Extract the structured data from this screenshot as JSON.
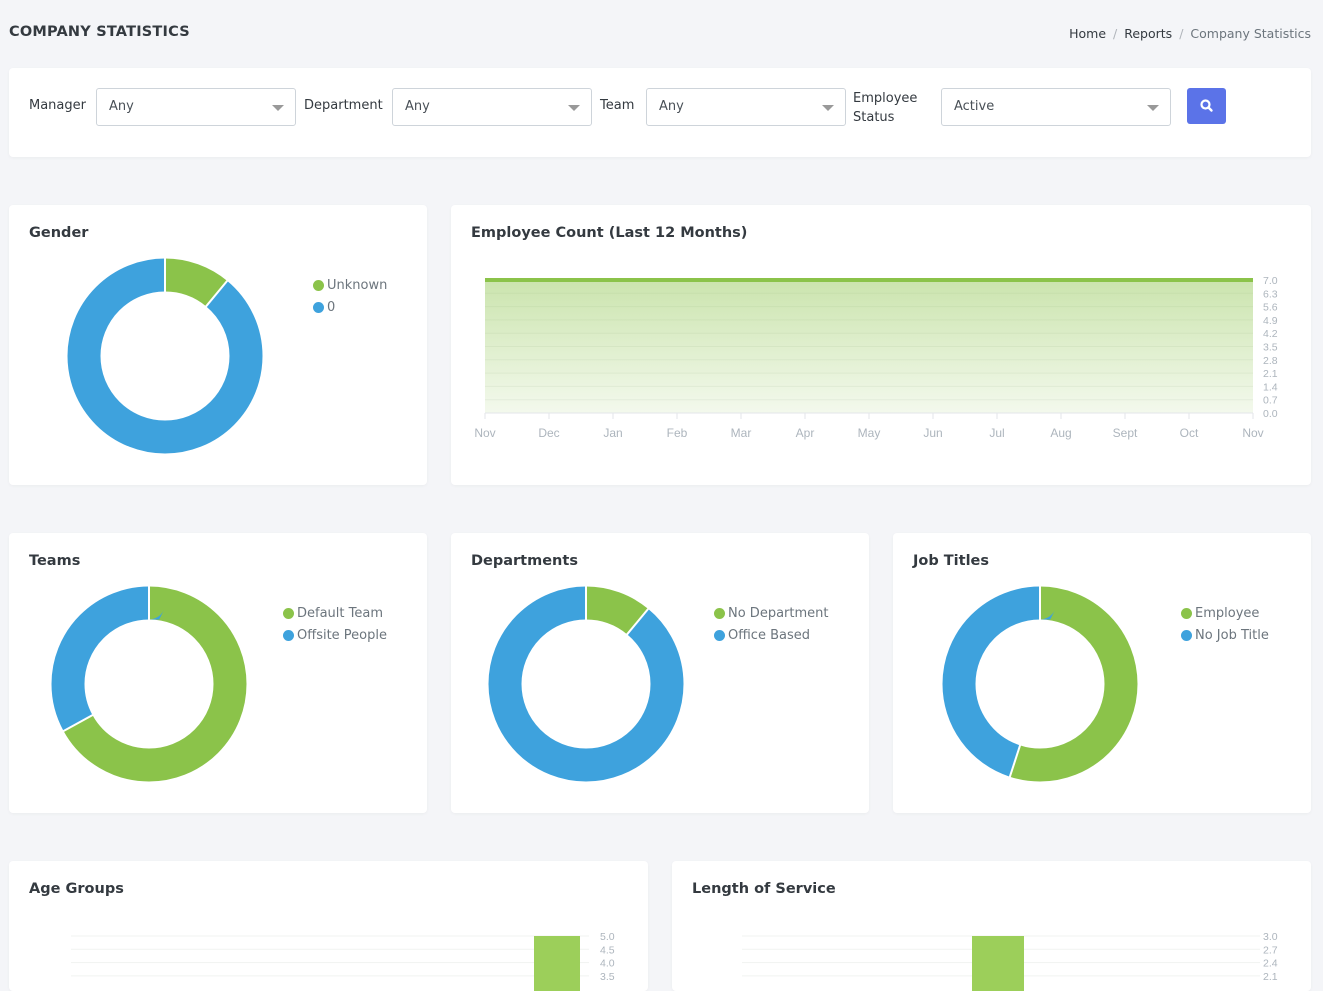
{
  "header": {
    "title": "COMPANY STATISTICS",
    "breadcrumb": [
      "Home",
      "Reports",
      "Company Statistics"
    ]
  },
  "filters": {
    "manager": {
      "label": "Manager",
      "value": "Any"
    },
    "department": {
      "label": "Department",
      "value": "Any"
    },
    "team": {
      "label": "Team",
      "value": "Any"
    },
    "status": {
      "label": "Employee Status",
      "value": "Active"
    },
    "search_icon": "search-icon"
  },
  "colors": {
    "green": "#8bc34a",
    "blue": "#3ea2dd",
    "button": "#5b73e8"
  },
  "donuts": [
    {
      "id": "gender",
      "title": "Gender",
      "segments": [
        {
          "label": "Unknown",
          "value": 11,
          "color": "#8bc34a"
        },
        {
          "label": "0",
          "value": 89,
          "color": "#3ea2dd"
        }
      ]
    },
    {
      "id": "teams",
      "title": "Teams",
      "segments": [
        {
          "label": "Default Team",
          "value": 67,
          "color": "#8bc34a"
        },
        {
          "label": "Offsite People",
          "value": 33,
          "color": "#3ea2dd"
        }
      ]
    },
    {
      "id": "departments",
      "title": "Departments",
      "segments": [
        {
          "label": "No Department",
          "value": 11,
          "color": "#8bc34a"
        },
        {
          "label": "Office Based",
          "value": 89,
          "color": "#3ea2dd"
        }
      ]
    },
    {
      "id": "jobtitles",
      "title": "Job Titles",
      "segments": [
        {
          "label": "Employee",
          "value": 55,
          "color": "#8bc34a"
        },
        {
          "label": "No Job Title",
          "value": 45,
          "color": "#3ea2dd"
        }
      ]
    }
  ],
  "chart_data": [
    {
      "type": "area",
      "title": "Employee Count (Last 12 Months)",
      "categories": [
        "Nov",
        "Dec",
        "Jan",
        "Feb",
        "Mar",
        "Apr",
        "May",
        "Jun",
        "Jul",
        "Aug",
        "Sept",
        "Oct",
        "Nov"
      ],
      "values": [
        7,
        7,
        7,
        7,
        7,
        7,
        7,
        7,
        7,
        7,
        7,
        7,
        7
      ],
      "ylim": [
        0,
        7
      ],
      "yticks": [
        "7.0",
        "6.3",
        "5.6",
        "4.9",
        "4.2",
        "3.5",
        "2.8",
        "2.1",
        "1.4",
        "0.7",
        "0.0"
      ]
    },
    {
      "type": "bar",
      "title": "Age Groups",
      "yticks": [
        "5.0",
        "4.5",
        "4.0",
        "3.5"
      ],
      "ylim_visible": [
        3.5,
        5
      ],
      "values": [
        5
      ]
    },
    {
      "type": "bar",
      "title": "Length of Service",
      "yticks": [
        "3.0",
        "2.7",
        "2.4",
        "2.1"
      ],
      "ylim_visible": [
        2.1,
        3
      ],
      "values": [
        3
      ]
    }
  ]
}
